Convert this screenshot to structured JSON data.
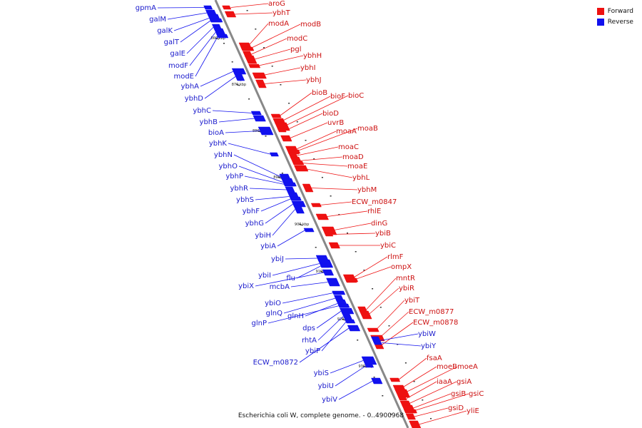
{
  "legend": {
    "forward": {
      "label": "Forward",
      "color": "#ee1111"
    },
    "reverse": {
      "label": "Reverse",
      "color": "#1111ee"
    }
  },
  "caption": "Escherichia coli W, complete genome. - 0..4900968",
  "backbone_color": "#888888",
  "ticks": [
    "860 kbp",
    "870 kbp",
    "880 kbp",
    "890 kbp",
    "900 kbp",
    "910 kbp",
    "920 kbp",
    "930 kbp"
  ],
  "forward_genes": [
    "aroG",
    "ybhT",
    "modA",
    "modB",
    "modC",
    "pgl",
    "ybhH",
    "ybhI",
    "ybhJ",
    "bioB",
    "bioF",
    "bioC",
    "bioD",
    "uvrB",
    "moaA",
    "moaB",
    "moaC",
    "moaD",
    "moaE",
    "ybhL",
    "ybhM",
    "ECW_m0847",
    "rhlE",
    "dinG",
    "ybiB",
    "ybiC",
    "rlmF",
    "ompX",
    "mntR",
    "ybiR",
    "ybiT",
    "ECW_m0877",
    "ECW_m0878",
    "fsaA",
    "moeB",
    "moeA",
    "iaaA",
    "gsiA",
    "gsiB",
    "gsiC",
    "gsiD",
    "yliE"
  ],
  "reverse_genes": [
    "gpmA",
    "galM",
    "galK",
    "galT",
    "galE",
    "modF",
    "modE",
    "ybhA",
    "ybhD",
    "ybhC",
    "ybhB",
    "bioA",
    "ybhK",
    "ybhN",
    "ybhO",
    "ybhP",
    "ybhR",
    "ybhS",
    "ybhF",
    "ybhG",
    "ybiH",
    "ybiA",
    "ybiJ",
    "ybiI",
    "flu",
    "ybiX",
    "mcbA",
    "ybiO",
    "glnQ",
    "glnH",
    "glnP",
    "dps",
    "rhtA",
    "ybiP",
    "ECW_m0872",
    "ybiS",
    "ybiU",
    "ybiV",
    "ybiW",
    "ybiY"
  ]
}
